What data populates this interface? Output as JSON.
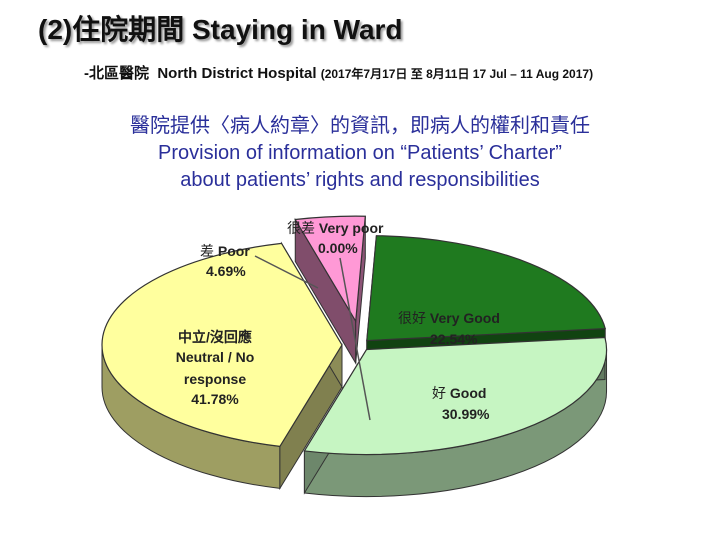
{
  "header": {
    "title": "(2)住院期間 Staying in Ward",
    "hospital_prefix": "-北區醫院",
    "hospital_name": "North District Hospital",
    "period": "(2017年7月17日 至 8月11日 17 Jul – 11 Aug 2017)"
  },
  "description": {
    "line1": "醫院提供〈病人約章〉的資訊，即病人的權利和責任",
    "line2": "Provision of information on “Patients’ Charter”",
    "line3": "about patients’ rights and responsibilities"
  },
  "chart_data": {
    "type": "pie",
    "title": "",
    "slices": [
      {
        "label_zh": "很好",
        "label_en": "Very Good",
        "value": 22.54,
        "value_text": "22.54%",
        "color": "#1f7a1f"
      },
      {
        "label_zh": "好",
        "label_en": "Good",
        "value": 30.99,
        "value_text": "30.99%",
        "color": "#c6f5c2"
      },
      {
        "label_zh": "中立/沒回應",
        "label_en": "Neutral / No response",
        "value": 41.78,
        "value_text": "41.78%",
        "color": "#ffff9e"
      },
      {
        "label_zh": "差",
        "label_en": "Poor",
        "value": 4.69,
        "value_text": "4.69%",
        "color": "#ff99d6"
      },
      {
        "label_zh": "很差",
        "label_en": "Very poor",
        "value": 0.0,
        "value_text": "0.00%",
        "color": "#cc88bb"
      }
    ]
  }
}
